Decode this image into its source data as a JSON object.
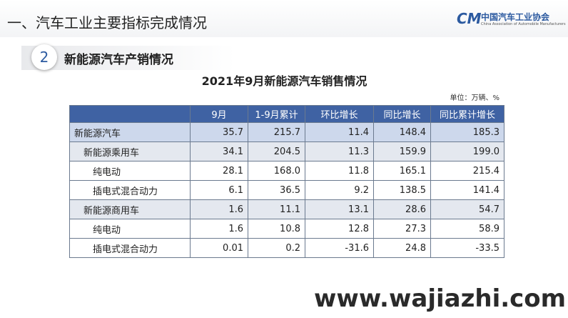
{
  "header": {
    "title": "一、汽车工业主要指标完成情况",
    "logo_cn": "中国汽车工业协会",
    "logo_en": "China Association of Automobile Manufacturers",
    "logo_mark": "CM"
  },
  "section": {
    "number": "2",
    "title": "新能源汽车产销情况"
  },
  "table": {
    "title": "2021年9月新能源汽车销售情况",
    "unit": "单位：万辆、%",
    "columns": [
      "",
      "9月",
      "1-9月累计",
      "环比增长",
      "同比增长",
      "同比累计增长"
    ],
    "rows": [
      [
        "新能源汽车",
        "35.7",
        "215.7",
        "11.4",
        "148.4",
        "185.3"
      ],
      [
        "新能源乘用车",
        "34.1",
        "204.5",
        "11.3",
        "159.9",
        "199.0"
      ],
      [
        "纯电动",
        "28.1",
        "168.0",
        "11.8",
        "165.1",
        "215.4"
      ],
      [
        "插电式混合动力",
        "6.1",
        "36.5",
        "9.2",
        "138.5",
        "141.4"
      ],
      [
        "新能源商用车",
        "1.6",
        "11.1",
        "13.1",
        "28.6",
        "54.7"
      ],
      [
        "纯电动",
        "1.6",
        "10.8",
        "12.8",
        "27.3",
        "58.9"
      ],
      [
        "插电式混合动力",
        "0.01",
        "0.2",
        "-31.6",
        "24.8",
        "-33.5"
      ]
    ]
  },
  "watermark": "www.wajiazhi.com"
}
